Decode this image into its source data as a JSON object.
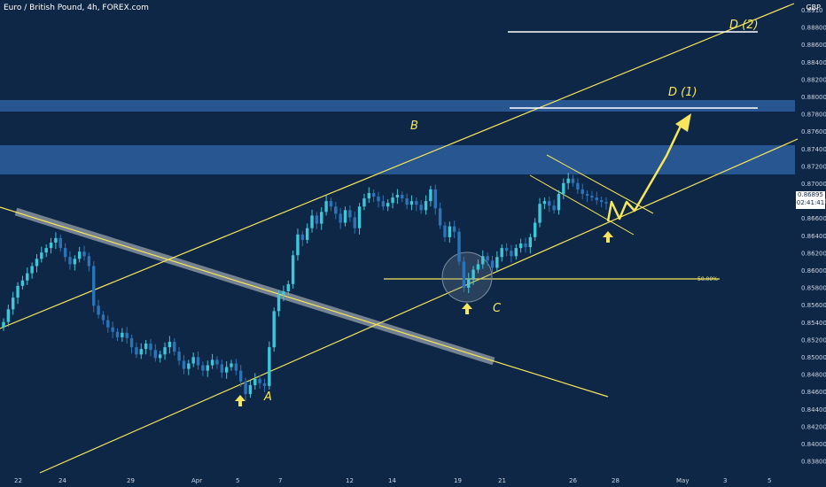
{
  "header": {
    "title": "Euro / British Pound, 4h, FOREX.com",
    "currency": "GBP"
  },
  "price_box": {
    "price": "0.86895",
    "countdown": "02:41:41"
  },
  "colors": {
    "background": "#0f2746",
    "up": "#3ec7d9",
    "down": "#2c74b8",
    "annotation": "#f7e65b",
    "zone": "#2a5c99"
  },
  "chart_data": {
    "type": "candlestick",
    "y_ticks": [
      "0.8910",
      "0.88800",
      "0.88600",
      "0.88400",
      "0.88200",
      "0.88000",
      "0.87800",
      "0.87600",
      "0.87400",
      "0.87200",
      "0.87000",
      "0.86800",
      "0.86600",
      "0.86400",
      "0.86200",
      "0.86000",
      "0.85800",
      "0.85600",
      "0.85400",
      "0.85200",
      "0.85000",
      "0.84800",
      "0.84600",
      "0.84400",
      "0.84200",
      "0.84000",
      "0.83800"
    ],
    "x_ticks": [
      "22",
      "24",
      "29",
      "Apr",
      "5",
      "7",
      "12",
      "14",
      "19",
      "21",
      "26",
      "28",
      "May",
      "3",
      "5"
    ],
    "ylim": [
      0.8375,
      0.8915
    ],
    "candles_close": [
      0.8558,
      0.8572,
      0.8585,
      0.8598,
      0.8604,
      0.8612,
      0.862,
      0.8628,
      0.8635,
      0.864,
      0.8646,
      0.8651,
      0.864,
      0.863,
      0.8622,
      0.8628,
      0.8636,
      0.8631,
      0.862,
      0.8576,
      0.8566,
      0.856,
      0.8552,
      0.8547,
      0.8541,
      0.8546,
      0.854,
      0.853,
      0.8522,
      0.8528,
      0.8534,
      0.8527,
      0.8518,
      0.8522,
      0.853,
      0.8536,
      0.8525,
      0.8515,
      0.8506,
      0.8512,
      0.8519,
      0.851,
      0.8504,
      0.851,
      0.8516,
      0.8511,
      0.8502,
      0.8508,
      0.8512,
      0.8504,
      0.8492,
      0.8478,
      0.8488,
      0.8495,
      0.849,
      0.8487,
      0.853,
      0.857,
      0.8588,
      0.8592,
      0.86,
      0.8632,
      0.8655,
      0.8649,
      0.8662,
      0.8676,
      0.8667,
      0.868,
      0.8692,
      0.8686,
      0.8678,
      0.8668,
      0.8682,
      0.8674,
      0.8662,
      0.8686,
      0.8695,
      0.8701,
      0.8697,
      0.8692,
      0.8686,
      0.869,
      0.8696,
      0.8699,
      0.8695,
      0.8688,
      0.8692,
      0.8688,
      0.8682,
      0.8692,
      0.8705,
      0.8684,
      0.8665,
      0.8652,
      0.8664,
      0.8658,
      0.8625,
      0.8596,
      0.8606,
      0.8616,
      0.8622,
      0.8631,
      0.8626,
      0.8618,
      0.863,
      0.864,
      0.8637,
      0.8631,
      0.864,
      0.8645,
      0.8641,
      0.8652,
      0.8668,
      0.8689,
      0.8692,
      0.8687,
      0.8682,
      0.87,
      0.8712,
      0.8717,
      0.8712,
      0.8705,
      0.87,
      0.8698,
      0.8696,
      0.8693,
      0.8691,
      0.86895
    ],
    "annotations": {
      "wave_A": "A",
      "wave_B": "B",
      "wave_C": "C",
      "target_1": "D (1)",
      "target_2": "D (2)",
      "fib": "50.00%"
    }
  }
}
